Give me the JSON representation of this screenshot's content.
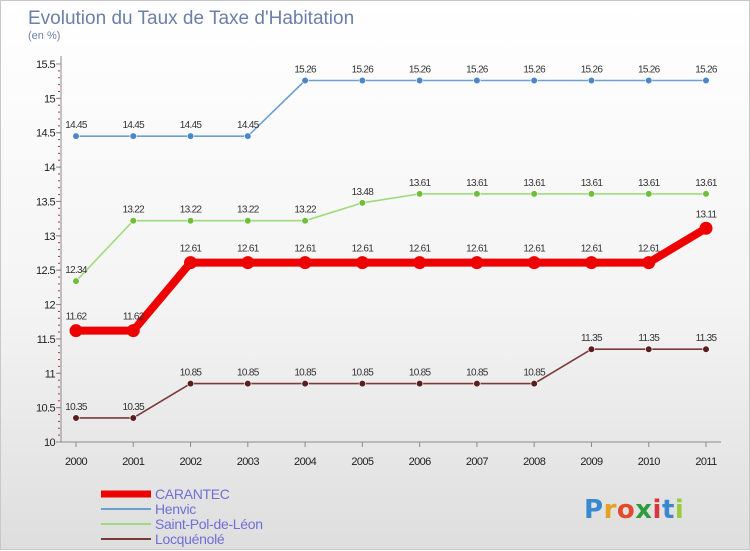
{
  "chart_data": {
    "type": "line",
    "title": "Evolution du Taux de Taxe d'Habitation",
    "subtitle": "(en %)",
    "xlabel": "",
    "ylabel": "",
    "categories": [
      "2000",
      "2001",
      "2002",
      "2003",
      "2004",
      "2005",
      "2006",
      "2007",
      "2008",
      "2009",
      "2010",
      "2011"
    ],
    "ylim": [
      10,
      15.5
    ],
    "yticks": [
      "10",
      "10.5",
      "11",
      "11.5",
      "12",
      "12.5",
      "13",
      "13.5",
      "14",
      "14.5",
      "15",
      "15.5"
    ],
    "grid": false,
    "legend_position": "bottom-left",
    "series": [
      {
        "name": "Henvic",
        "color": "#6d9fd2",
        "marker": "#4a86c8",
        "highlight": false,
        "values": [
          14.45,
          14.45,
          14.45,
          14.45,
          15.26,
          15.26,
          15.26,
          15.26,
          15.26,
          15.26,
          15.26,
          15.26
        ],
        "labels": [
          "14.45",
          "14.45",
          "14.45",
          "14.45",
          "15.26",
          "15.26",
          "15.26",
          "15.26",
          "15.26",
          "15.26",
          "15.26",
          "15.26"
        ]
      },
      {
        "name": "Saint-Pol-de-Léon",
        "color": "#9fda7e",
        "marker": "#6cc038",
        "highlight": false,
        "values": [
          12.34,
          13.22,
          13.22,
          13.22,
          13.22,
          13.48,
          13.61,
          13.61,
          13.61,
          13.61,
          13.61,
          13.61
        ],
        "labels": [
          "12.34",
          "13.22",
          "13.22",
          "13.22",
          "13.22",
          "13.48",
          "13.61",
          "13.61",
          "13.61",
          "13.61",
          "13.61",
          "13.61"
        ]
      },
      {
        "name": "CARANTEC",
        "color": "#ee0000",
        "marker": "#ee0000",
        "highlight": true,
        "values": [
          11.62,
          11.62,
          12.61,
          12.61,
          12.61,
          12.61,
          12.61,
          12.61,
          12.61,
          12.61,
          12.61,
          13.11
        ],
        "labels": [
          "11.62",
          "11.62",
          "12.61",
          "12.61",
          "12.61",
          "12.61",
          "12.61",
          "12.61",
          "12.61",
          "12.61",
          "12.61",
          "13.11"
        ]
      },
      {
        "name": "Locquénolé",
        "color": "#7a3a3a",
        "marker": "#5a1e1e",
        "highlight": false,
        "values": [
          10.35,
          10.35,
          10.85,
          10.85,
          10.85,
          10.85,
          10.85,
          10.85,
          10.85,
          11.35,
          11.35,
          11.35
        ],
        "labels": [
          "10.35",
          "10.35",
          "10.85",
          "10.85",
          "10.85",
          "10.85",
          "10.85",
          "10.85",
          "10.85",
          "11.35",
          "11.35",
          "11.35"
        ]
      }
    ],
    "legend_order": [
      "CARANTEC",
      "Henvic",
      "Saint-Pol-de-Léon",
      "Locquénolé"
    ]
  },
  "brand": {
    "logo_text": "Proxiti",
    "logo_letters": [
      "P",
      "r",
      "o",
      "x",
      "i",
      "t",
      "i"
    ],
    "logo_colors": [
      "#3a88cf",
      "#e3a21f",
      "#e34a2a",
      "#2e9c3c",
      "#d8363a",
      "#3a88cf",
      "#9acb3c"
    ]
  }
}
